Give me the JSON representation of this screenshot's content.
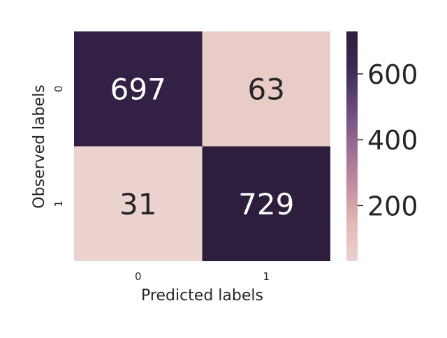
{
  "chart_data": {
    "type": "heatmap",
    "title": "",
    "xlabel": "Predicted labels",
    "ylabel": "Observed labels",
    "x_categories": [
      "0",
      "1"
    ],
    "y_categories": [
      "0",
      "1"
    ],
    "values": [
      [
        697,
        63
      ],
      [
        31,
        729
      ]
    ],
    "colorbar": {
      "vmin": 31,
      "vmax": 729,
      "ticks": [
        200,
        400,
        600
      ],
      "tick_labels": [
        "200",
        "400",
        "600"
      ]
    },
    "colormap": [
      "#ecd3cf",
      "#e2b9b5",
      "#c48b9f",
      "#9a6c93",
      "#6a4a7c",
      "#3e2a54",
      "#2d1e3e"
    ],
    "annotation_colors": {
      "light_cell": "#262626",
      "dark_cell": "#ffffff"
    }
  }
}
